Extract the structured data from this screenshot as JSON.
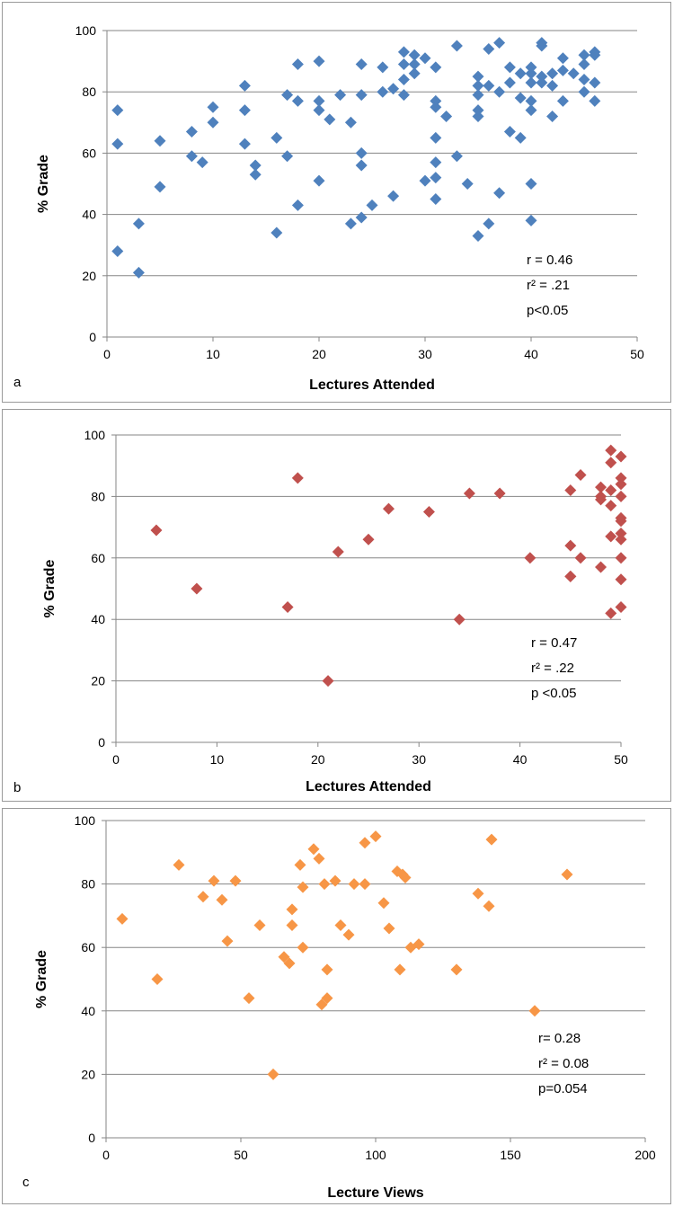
{
  "chart_data": [
    {
      "type": "scatter",
      "panel_label": "a",
      "xlabel": "Lectures Attended",
      "ylabel": "% Grade",
      "xlim": [
        0,
        50
      ],
      "ylim": [
        0,
        100
      ],
      "xticks": [
        0,
        10,
        20,
        30,
        40,
        50
      ],
      "yticks": [
        0,
        20,
        40,
        60,
        80,
        100
      ],
      "grid": "horizontal",
      "marker_color": "#4F81BD",
      "stats": [
        "r = 0.46",
        "r² = .21",
        "p<0.05"
      ],
      "points": [
        [
          1,
          74
        ],
        [
          1,
          63
        ],
        [
          1,
          28
        ],
        [
          3,
          37
        ],
        [
          3,
          21
        ],
        [
          5,
          64
        ],
        [
          5,
          49
        ],
        [
          8,
          67
        ],
        [
          8,
          59
        ],
        [
          9,
          57
        ],
        [
          10,
          75
        ],
        [
          10,
          70
        ],
        [
          13,
          82
        ],
        [
          13,
          74
        ],
        [
          13,
          63
        ],
        [
          14,
          56
        ],
        [
          14,
          53
        ],
        [
          16,
          65
        ],
        [
          16,
          34
        ],
        [
          17,
          79
        ],
        [
          17,
          59
        ],
        [
          18,
          89
        ],
        [
          18,
          77
        ],
        [
          18,
          43
        ],
        [
          20,
          90
        ],
        [
          20,
          77
        ],
        [
          20,
          74
        ],
        [
          20,
          51
        ],
        [
          21,
          71
        ],
        [
          22,
          79
        ],
        [
          23,
          70
        ],
        [
          23,
          37
        ],
        [
          24,
          89
        ],
        [
          24,
          79
        ],
        [
          24,
          60
        ],
        [
          24,
          56
        ],
        [
          24,
          39
        ],
        [
          25,
          43
        ],
        [
          26,
          88
        ],
        [
          26,
          80
        ],
        [
          27,
          81
        ],
        [
          27,
          46
        ],
        [
          28,
          93
        ],
        [
          28,
          89
        ],
        [
          28,
          84
        ],
        [
          28,
          79
        ],
        [
          29,
          92
        ],
        [
          29,
          89
        ],
        [
          29,
          86
        ],
        [
          30,
          91
        ],
        [
          30,
          51
        ],
        [
          31,
          88
        ],
        [
          31,
          77
        ],
        [
          31,
          75
        ],
        [
          31,
          65
        ],
        [
          31,
          57
        ],
        [
          31,
          52
        ],
        [
          31,
          45
        ],
        [
          32,
          72
        ],
        [
          33,
          95
        ],
        [
          33,
          59
        ],
        [
          34,
          50
        ],
        [
          35,
          85
        ],
        [
          35,
          82
        ],
        [
          35,
          79
        ],
        [
          35,
          74
        ],
        [
          35,
          72
        ],
        [
          35,
          33
        ],
        [
          36,
          94
        ],
        [
          36,
          82
        ],
        [
          36,
          37
        ],
        [
          37,
          96
        ],
        [
          37,
          80
        ],
        [
          37,
          47
        ],
        [
          38,
          88
        ],
        [
          38,
          83
        ],
        [
          38,
          67
        ],
        [
          39,
          86
        ],
        [
          39,
          78
        ],
        [
          39,
          65
        ],
        [
          40,
          88
        ],
        [
          40,
          86
        ],
        [
          40,
          83
        ],
        [
          40,
          77
        ],
        [
          40,
          74
        ],
        [
          40,
          50
        ],
        [
          40,
          38
        ],
        [
          41,
          96
        ],
        [
          41,
          95
        ],
        [
          41,
          85
        ],
        [
          41,
          83
        ],
        [
          42,
          86
        ],
        [
          42,
          82
        ],
        [
          42,
          72
        ],
        [
          43,
          91
        ],
        [
          43,
          87
        ],
        [
          43,
          77
        ],
        [
          44,
          86
        ],
        [
          45,
          92
        ],
        [
          45,
          89
        ],
        [
          45,
          84
        ],
        [
          45,
          80
        ],
        [
          46,
          93
        ],
        [
          46,
          92
        ],
        [
          46,
          83
        ],
        [
          46,
          77
        ]
      ]
    },
    {
      "type": "scatter",
      "panel_label": "b",
      "xlabel": "Lectures Attended",
      "ylabel": "% Grade",
      "xlim": [
        0,
        50
      ],
      "ylim": [
        0,
        100
      ],
      "xticks": [
        0,
        10,
        20,
        30,
        40,
        50
      ],
      "yticks": [
        0,
        20,
        40,
        60,
        80,
        100
      ],
      "grid": "horizontal",
      "marker_color": "#C0504D",
      "stats": [
        "r = 0.47",
        "r² = .22",
        "p <0.05"
      ],
      "points": [
        [
          4,
          69
        ],
        [
          8,
          50
        ],
        [
          17,
          44
        ],
        [
          18,
          86
        ],
        [
          21,
          20
        ],
        [
          22,
          62
        ],
        [
          25,
          66
        ],
        [
          27,
          76
        ],
        [
          31,
          75
        ],
        [
          34,
          40
        ],
        [
          35,
          81
        ],
        [
          38,
          81
        ],
        [
          41,
          60
        ],
        [
          45,
          82
        ],
        [
          45,
          64
        ],
        [
          45,
          54
        ],
        [
          45,
          54
        ],
        [
          46,
          87
        ],
        [
          46,
          60
        ],
        [
          48,
          83
        ],
        [
          48,
          80
        ],
        [
          48,
          79
        ],
        [
          48,
          57
        ],
        [
          49,
          95
        ],
        [
          49,
          91
        ],
        [
          49,
          82
        ],
        [
          49,
          77
        ],
        [
          49,
          67
        ],
        [
          49,
          42
        ],
        [
          50,
          93
        ],
        [
          50,
          86
        ],
        [
          50,
          84
        ],
        [
          50,
          80
        ],
        [
          50,
          73
        ],
        [
          50,
          72
        ],
        [
          50,
          68
        ],
        [
          50,
          66
        ],
        [
          50,
          60
        ],
        [
          50,
          53
        ],
        [
          50,
          44
        ]
      ]
    },
    {
      "type": "scatter",
      "panel_label": "c",
      "xlabel": "Lecture Views",
      "ylabel": "% Grade",
      "xlim": [
        0,
        200
      ],
      "ylim": [
        0,
        100
      ],
      "xticks": [
        0,
        50,
        100,
        150,
        200
      ],
      "yticks": [
        0,
        20,
        40,
        60,
        80,
        100
      ],
      "grid": "horizontal",
      "marker_color": "#F79646",
      "stats": [
        "r= 0.28",
        "r² = 0.08",
        "p=0.054"
      ],
      "points": [
        [
          6,
          69
        ],
        [
          19,
          50
        ],
        [
          27,
          86
        ],
        [
          36,
          76
        ],
        [
          40,
          81
        ],
        [
          43,
          75
        ],
        [
          45,
          62
        ],
        [
          48,
          81
        ],
        [
          53,
          44
        ],
        [
          57,
          67
        ],
        [
          62,
          20
        ],
        [
          66,
          57
        ],
        [
          68,
          55
        ],
        [
          69,
          72
        ],
        [
          69,
          67
        ],
        [
          72,
          86
        ],
        [
          73,
          79
        ],
        [
          73,
          60
        ],
        [
          77,
          91
        ],
        [
          79,
          88
        ],
        [
          80,
          42
        ],
        [
          81,
          80
        ],
        [
          82,
          53
        ],
        [
          82,
          44
        ],
        [
          85,
          81
        ],
        [
          87,
          67
        ],
        [
          90,
          64
        ],
        [
          92,
          80
        ],
        [
          96,
          93
        ],
        [
          96,
          80
        ],
        [
          100,
          95
        ],
        [
          103,
          74
        ],
        [
          105,
          66
        ],
        [
          108,
          84
        ],
        [
          109,
          53
        ],
        [
          110,
          83
        ],
        [
          111,
          82
        ],
        [
          113,
          60
        ],
        [
          116,
          61
        ],
        [
          130,
          53
        ],
        [
          138,
          77
        ],
        [
          142,
          73
        ],
        [
          143,
          94
        ],
        [
          159,
          40
        ],
        [
          171,
          83
        ]
      ]
    }
  ]
}
